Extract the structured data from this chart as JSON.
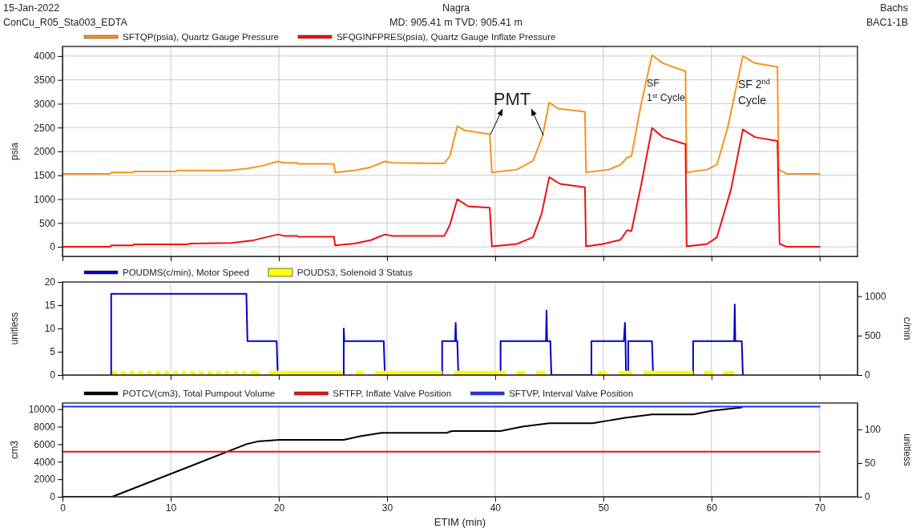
{
  "chart_data": [
    {
      "type": "line",
      "title": "Nagra",
      "subtitle": "MD: 905.41 m  TVD: 905.41 m",
      "ylabel": "psia",
      "annotations": [
        "15-Jan-2022",
        "ConCu_R05_Sta003_EDTA",
        "Bachs",
        "BAC1-1B",
        "PMT",
        "SF\n1$^{st}$ Cycle",
        "SF 2$^{nd}$\nCycle"
      ],
      "xlim": [
        0,
        73.5
      ],
      "xticks": [
        0,
        10,
        20,
        30,
        40,
        50,
        60,
        70
      ],
      "ylim": [
        -200,
        4200
      ],
      "yticks": [
        0,
        500,
        1000,
        1500,
        2000,
        2500,
        3000,
        3500,
        4000
      ],
      "grid": true,
      "legend": "top",
      "tick_labels": "y",
      "series": [
        {
          "name": "SFTQP(psia), Quartz Gauge Pressure",
          "color": "#f7941d",
          "x": [
            0,
            4.4,
            4.5,
            6.5,
            6.6,
            10.5,
            10.6,
            15.3,
            17,
            18.5,
            19.9,
            20.5,
            21.7,
            21.8,
            25.1,
            25.2,
            27,
            28.5,
            29.8,
            30.5,
            35.3,
            35.8,
            36.5,
            37.2,
            39.5,
            39.7,
            42,
            43.5,
            44.4,
            45.0,
            45.8,
            48.3,
            48.4,
            50.5,
            51.6,
            52.2,
            52.6,
            53.5,
            54.5,
            55.5,
            57.6,
            57.7,
            59.6,
            60.5,
            61.5,
            62.9,
            64,
            66.1,
            66.2,
            67,
            70
          ],
          "values": [
            1530,
            1530,
            1560,
            1560,
            1580,
            1580,
            1600,
            1600,
            1640,
            1700,
            1790,
            1760,
            1760,
            1740,
            1740,
            1560,
            1600,
            1670,
            1790,
            1760,
            1750,
            1900,
            2530,
            2440,
            2360,
            1560,
            1620,
            1800,
            2340,
            3025,
            2900,
            2830,
            1560,
            1620,
            1720,
            1870,
            1900,
            3000,
            4020,
            3850,
            3680,
            1560,
            1620,
            1720,
            2500,
            4000,
            3850,
            3770,
            1620,
            1530,
            1530
          ]
        },
        {
          "name": "SFQGINFPRES(psia), Quartz Gauge Inflate Pressure",
          "color": "#ee1111",
          "x": [
            0,
            4.4,
            4.5,
            6.5,
            6.6,
            11.6,
            11.7,
            15.6,
            17.5,
            19.9,
            20.5,
            21.7,
            21.8,
            25.1,
            25.2,
            27,
            28.5,
            29.8,
            30.5,
            35.3,
            35.8,
            36.5,
            37.5,
            39.5,
            39.7,
            42,
            43.5,
            44.3,
            45.0,
            46,
            48.3,
            48.4,
            50,
            51.6,
            52.2,
            52.6,
            53.5,
            54.5,
            55.5,
            57.6,
            57.7,
            59.6,
            60.5,
            61.8,
            62.9,
            64,
            66.1,
            66.3,
            67,
            70
          ],
          "values": [
            0,
            0,
            30,
            30,
            50,
            50,
            70,
            80,
            130,
            260,
            230,
            230,
            210,
            210,
            30,
            70,
            140,
            260,
            230,
            230,
            450,
            1000,
            850,
            820,
            10,
            60,
            200,
            700,
            1460,
            1320,
            1250,
            10,
            60,
            150,
            350,
            330,
            1300,
            2490,
            2300,
            2150,
            10,
            60,
            200,
            1200,
            2460,
            2300,
            2220,
            60,
            0,
            0
          ]
        }
      ]
    },
    {
      "type": "line",
      "ylabel": "unitless",
      "y2label": "c/min",
      "xlim": [
        0,
        73.5
      ],
      "xticks": [
        0,
        10,
        20,
        30,
        40,
        50,
        60,
        70
      ],
      "ylim": [
        0,
        20
      ],
      "yticks": [
        0,
        5,
        10,
        15,
        20
      ],
      "y2lim": [
        0,
        1180
      ],
      "y2ticks": [
        0,
        500,
        1000
      ],
      "grid": "x",
      "legend": "top",
      "tick_labels": "y",
      "series": [
        {
          "name": "POUDMS(c/min), Motor Speed",
          "color": "#0000cc",
          "axis": "y2",
          "x": [
            4.5,
            4.5,
            17.0,
            17.1,
            19.8,
            19.9,
            26.0,
            26.0,
            26.05,
            26.1,
            29.7,
            29.8,
            35.1,
            35.1,
            36.3,
            36.35,
            36.4,
            36.5,
            36.6,
            40.5,
            40.5,
            44.7,
            44.75,
            44.8,
            45.1,
            45.2,
            48.9,
            48.9,
            51.9,
            52.0,
            52.05,
            52.1,
            52.3,
            52.3,
            54.5,
            54.6,
            58.3,
            58.3,
            62.1,
            62.15,
            62.2,
            62.8,
            62.9
          ],
          "values": [
            0,
            1030,
            1030,
            430,
            430,
            0,
            0,
            590,
            430,
            430,
            430,
            0,
            0,
            430,
            430,
            660,
            430,
            430,
            0,
            0,
            430,
            430,
            820,
            430,
            430,
            0,
            0,
            430,
            430,
            660,
            430,
            0,
            0,
            430,
            430,
            0,
            0,
            430,
            430,
            895,
            430,
            430,
            0
          ]
        },
        {
          "name": "POUDS3, Solenoid 3 Status",
          "color": "#ffff00",
          "type": "area",
          "x": [
            4.6,
            4.6,
            5.05,
            5.05,
            5.4,
            5.4,
            5.85,
            5.85,
            6.2,
            6.2,
            6.65,
            6.65,
            7.0,
            7.0,
            7.45,
            7.45,
            7.8,
            7.8,
            8.25,
            8.25,
            8.6,
            8.6,
            9.05,
            9.05,
            9.4,
            9.4,
            9.85,
            9.85,
            10.2,
            10.2,
            10.65,
            10.65,
            11.0,
            11.0,
            11.45,
            11.45,
            11.8,
            11.8,
            12.25,
            12.25,
            12.6,
            12.6,
            13.05,
            13.05,
            13.4,
            13.4,
            13.85,
            13.85,
            14.2,
            14.2,
            14.65,
            14.65,
            15.0,
            15.0,
            15.45,
            15.45,
            15.8,
            15.8,
            16.25,
            16.25,
            16.6,
            16.6,
            16.95,
            16.95,
            17.35,
            17.35,
            18.2,
            18.2,
            19.1,
            19.1,
            25.9,
            25.9,
            27.1,
            27.1,
            27.9,
            27.9,
            28.9,
            28.9,
            35.1,
            35.1,
            36.2,
            36.2,
            41.0,
            41.0,
            41.96,
            41.96,
            42.8,
            42.8,
            43.8,
            43.8,
            44.6,
            44.6,
            49.5,
            49.5,
            50.3,
            50.3,
            51.4,
            51.4,
            52.7,
            52.7,
            53.7,
            53.7,
            58.3,
            58.3,
            59.3,
            59.3,
            60.2,
            60.2,
            61.1,
            61.1,
            62.1,
            62.1
          ],
          "values": [
            0,
            0.9,
            0.9,
            0,
            0,
            0.9,
            0.9,
            0,
            0,
            0.9,
            0.9,
            0,
            0,
            0.9,
            0.9,
            0,
            0,
            0.9,
            0.9,
            0,
            0,
            0.9,
            0.9,
            0,
            0,
            0.9,
            0.9,
            0,
            0,
            0.9,
            0.9,
            0,
            0,
            0.9,
            0.9,
            0,
            0,
            0.9,
            0.9,
            0,
            0,
            0.9,
            0.9,
            0,
            0,
            0.9,
            0.9,
            0,
            0,
            0.9,
            0.9,
            0,
            0,
            0.9,
            0.9,
            0,
            0,
            0.9,
            0.9,
            0,
            0,
            0.9,
            0.9,
            0,
            0,
            0.9,
            0.9,
            0,
            0,
            0.9,
            0.9,
            0,
            0,
            0.9,
            0.9,
            0,
            0,
            0.9,
            0.9,
            0,
            0,
            0.9,
            0.9,
            0,
            0,
            0.9,
            0.9,
            0,
            0,
            0.9,
            0.9,
            0,
            0,
            0.9,
            0.9,
            0,
            0,
            0.9,
            0.9,
            0,
            0,
            0.9,
            0.9,
            0,
            0,
            0.9,
            0.9,
            0,
            0,
            0.9,
            0.9,
            0
          ]
        }
      ]
    },
    {
      "type": "line",
      "ylabel": "cm3",
      "y2label": "unitless",
      "xlabel": "ETIM (min)",
      "xlim": [
        0,
        73.5
      ],
      "xticks": [
        0,
        10,
        20,
        30,
        40,
        50,
        60,
        70
      ],
      "ylim": [
        0,
        10700
      ],
      "yticks": [
        0,
        2000,
        4000,
        6000,
        8000,
        10000
      ],
      "y2lim": [
        0,
        139.5
      ],
      "y2ticks": [
        0,
        50,
        100
      ],
      "grid": "x",
      "legend": "top",
      "series": [
        {
          "name": "POTCV(cm3), Total Pumpout Volume",
          "color": "#000000",
          "x": [
            0,
            4.6,
            17,
            18,
            20,
            26,
            27.5,
            29.5,
            35.5,
            36,
            40.5,
            42.5,
            45,
            49,
            50.5,
            52,
            54.5,
            58.3,
            60,
            62.8
          ],
          "values": [
            0,
            0,
            6000,
            6300,
            6500,
            6500,
            6900,
            7300,
            7300,
            7500,
            7500,
            8000,
            8400,
            8400,
            8700,
            9000,
            9400,
            9400,
            9800,
            10200
          ]
        },
        {
          "name": "SFTFP, Inflate Valve Position",
          "color": "#ee1111",
          "axis": "y2",
          "x": [
            0,
            70
          ],
          "values": [
            67,
            67
          ]
        },
        {
          "name": "SFTVP, Interval Valve Position",
          "color": "#2233ee",
          "axis": "y2",
          "x": [
            0,
            70
          ],
          "values": [
            134,
            134
          ]
        }
      ]
    }
  ]
}
